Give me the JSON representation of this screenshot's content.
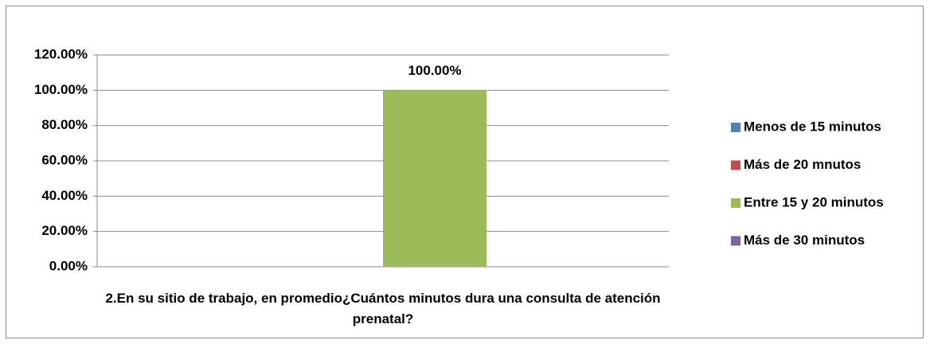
{
  "chart_data": {
    "type": "bar",
    "categories": [
      "2.En su sitio de trabajo, en promedio¿Cuántos minutos dura una consulta de atención prenatal?"
    ],
    "series": [
      {
        "name": "Menos de 15 minutos",
        "color": "#4f81bd",
        "values": [
          0
        ]
      },
      {
        "name": "Más de 20 mnutos",
        "color": "#c0504d",
        "values": [
          0
        ]
      },
      {
        "name": "Entre 15 y 20 minutos",
        "color": "#9bbb59",
        "values": [
          100
        ],
        "value_labels": [
          "100.00%"
        ]
      },
      {
        "name": "Más de 30 minutos",
        "color": "#8064a2",
        "values": [
          0
        ]
      }
    ],
    "ylim": [
      0,
      120
    ],
    "yticks": [
      {
        "value": 0,
        "label": "0.00%"
      },
      {
        "value": 20,
        "label": "20.00%"
      },
      {
        "value": 40,
        "label": "40.00%"
      },
      {
        "value": 60,
        "label": "60.00%"
      },
      {
        "value": 80,
        "label": "80.00%"
      },
      {
        "value": 100,
        "label": "100.00%"
      },
      {
        "value": 120,
        "label": "120.00%"
      }
    ],
    "grid": true,
    "legend": "right"
  }
}
